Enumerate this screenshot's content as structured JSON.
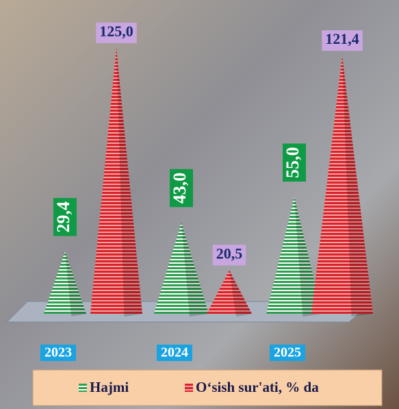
{
  "chart_data": {
    "type": "pyramid",
    "categories": [
      "2023",
      "2024",
      "2025"
    ],
    "series": [
      {
        "name": "Hajmi",
        "color": "#2e9e4f",
        "values": [
          29.4,
          43.0,
          55.0
        ],
        "value_labels": [
          "29,4",
          "43,0",
          "55,0"
        ]
      },
      {
        "name": "O‘sish sur'ati, % da",
        "color": "#d9232b",
        "values": [
          125.0,
          20.5,
          121.4
        ],
        "value_labels": [
          "125,0",
          "20,5",
          "121,4"
        ]
      }
    ]
  }
}
